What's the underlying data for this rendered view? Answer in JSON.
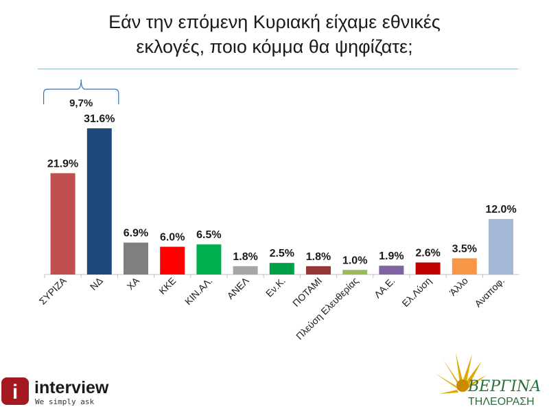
{
  "title_line1": "Εάν την επόμενη Κυριακή είχαμε εθνικές",
  "title_line2": "εκλογές, ποιο κόμμα θα ψηφίζατε;",
  "chart_data": {
    "type": "bar",
    "categories": [
      "ΣΥΡΙΖΑ",
      "ΝΔ",
      "ΧΑ",
      "ΚΚΕ",
      "ΚΙΝ.ΑΛ.",
      "ΑΝΕΛ",
      "Εν.Κ.",
      "ΠΟΤΑΜΙ",
      "Πλεύση Ελευθερίας",
      "ΛΑ.Ε.",
      "Ελ.Λύση",
      "Άλλο",
      "Αναποφ."
    ],
    "values": [
      21.9,
      31.6,
      6.9,
      6.0,
      6.5,
      1.8,
      2.5,
      1.8,
      1.0,
      1.9,
      2.6,
      3.5,
      12.0
    ],
    "labels": [
      "21.9%",
      "31.6%",
      "6.9%",
      "6.0%",
      "6.5%",
      "1.8%",
      "2.5%",
      "1.8%",
      "1.0%",
      "1.9%",
      "2.6%",
      "3.5%",
      "12.0%"
    ],
    "colors": [
      "#c0504d",
      "#1f497d",
      "#7f7f7f",
      "#ff0000",
      "#00b050",
      "#a6a6a6",
      "#00a04a",
      "#953735",
      "#9bbb59",
      "#8064a2",
      "#c00000",
      "#f79646",
      "#a5b8d8"
    ],
    "ylim": [
      0,
      32
    ],
    "annotation": "9,7%"
  },
  "logos": {
    "left_name": "interview",
    "left_tagline": "We simply ask",
    "left_icon_letter": "i",
    "right_name": "ΒΕΡΓΙΝΑ",
    "right_sub": "ΤΗΛΕΟΡΑΣΗ"
  }
}
